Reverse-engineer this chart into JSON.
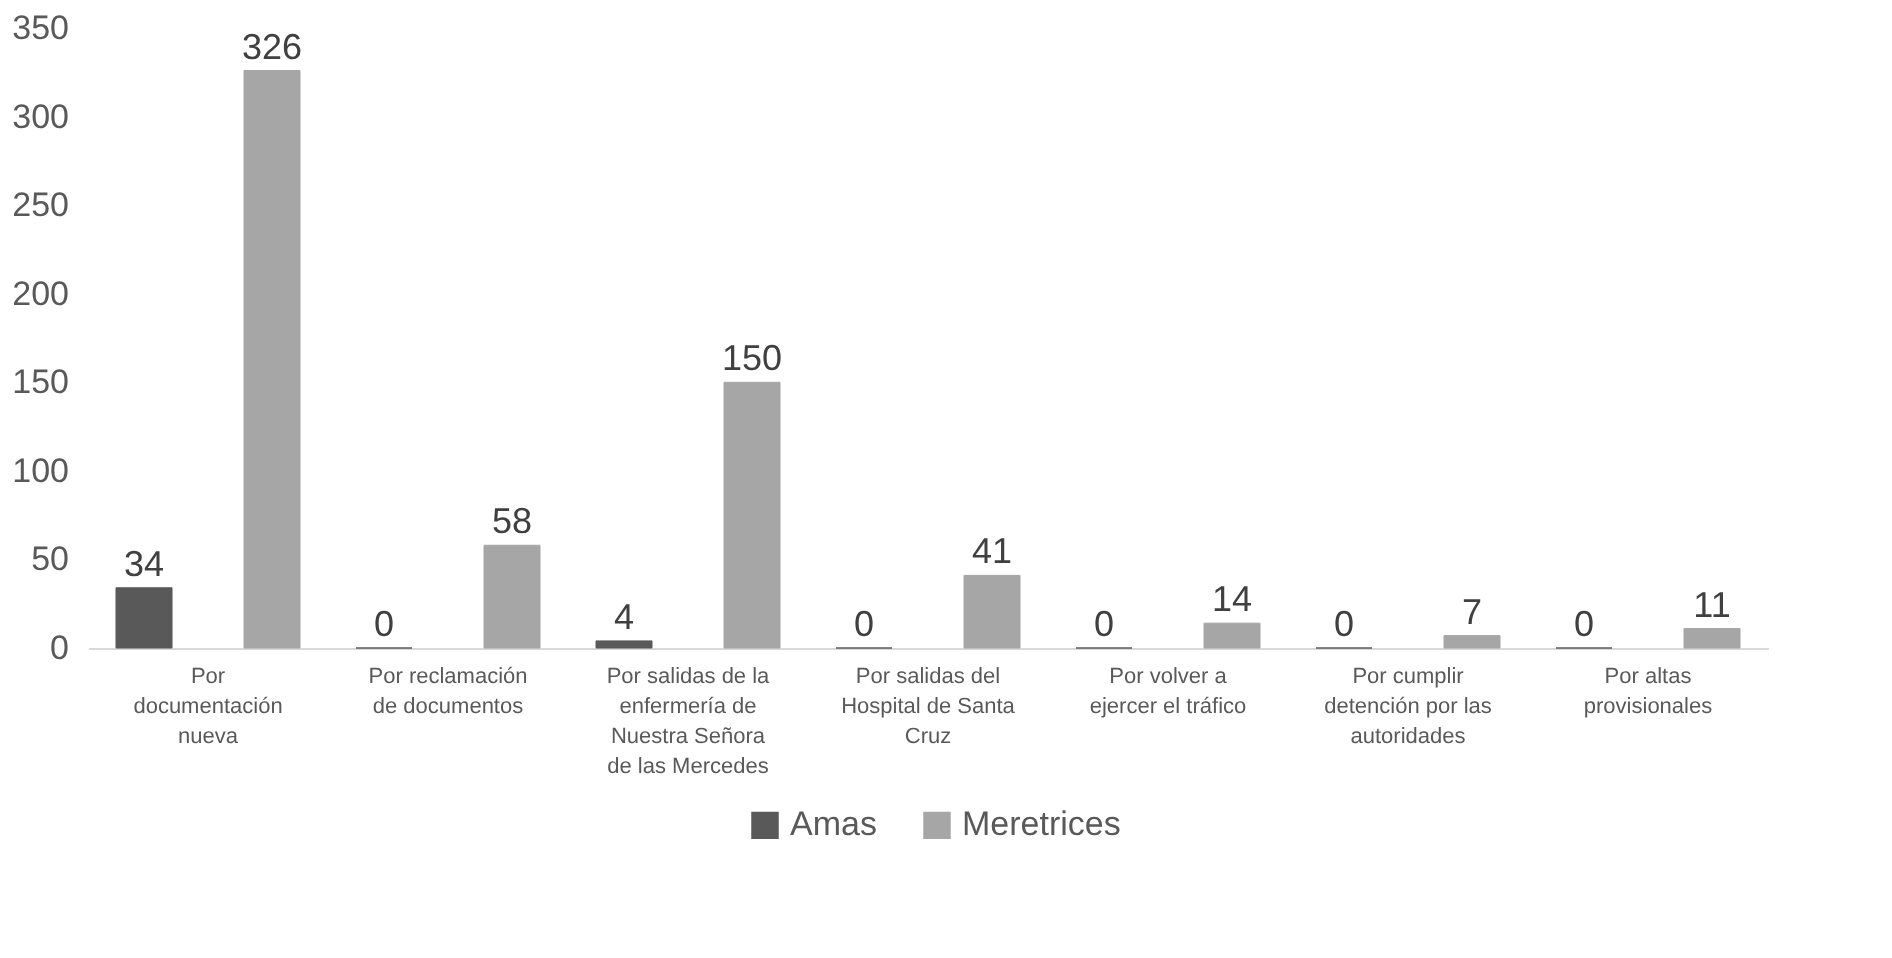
{
  "chart_data": {
    "type": "bar",
    "categories": [
      "Por\ndocumentación\nnueva",
      "Por reclamación\nde documentos",
      "Por salidas de la\nenfermería de\nNuestra Señora\nde las Mercedes",
      "Por salidas del\nHospital de Santa\nCruz",
      "Por volver a\nejercer el tráfico",
      "Por cumplir\ndetención por las\nautoridades",
      "Por altas\nprovisionales"
    ],
    "series": [
      {
        "name": "Amas",
        "color": "#595959",
        "values": [
          34,
          0,
          4,
          0,
          0,
          0,
          0
        ]
      },
      {
        "name": "Meretrices",
        "color": "#a6a6a6",
        "values": [
          326,
          58,
          150,
          41,
          14,
          7,
          11
        ]
      }
    ],
    "ylim": [
      0,
      350
    ],
    "yticks": [
      0,
      50,
      100,
      150,
      200,
      250,
      300,
      350
    ],
    "grid": false,
    "data_labels": true,
    "legend": "bottom"
  }
}
